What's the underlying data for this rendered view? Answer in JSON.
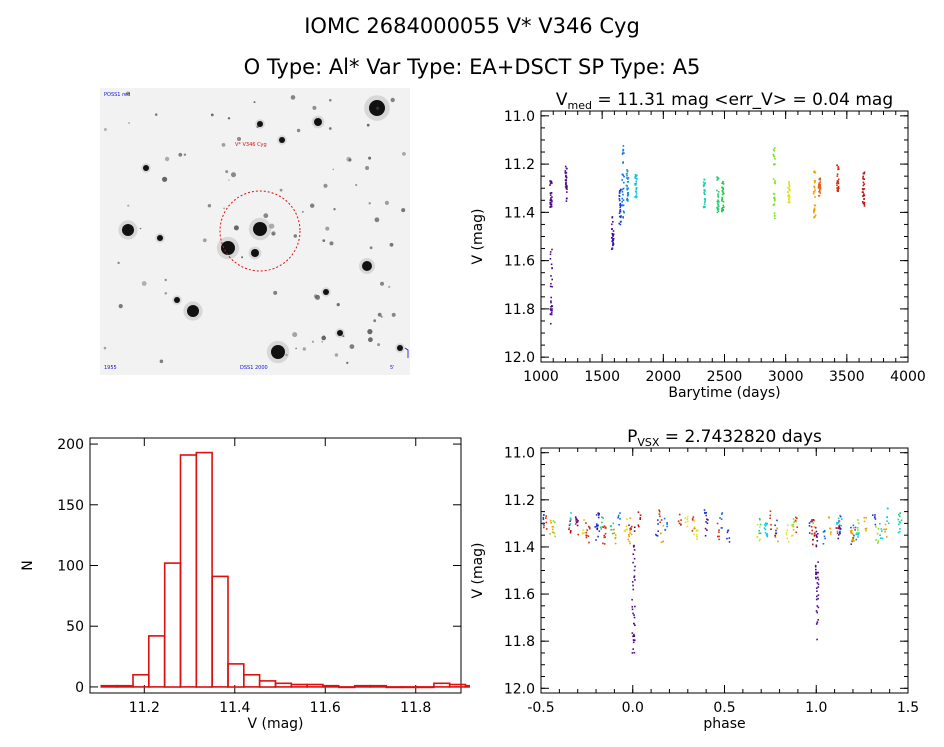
{
  "header": {
    "title_line1": "IOMC 2684000055    V* V346 Cyg",
    "title_line2": "O Type: Al*  Var Type: EA+DSCT  SP Type: A5"
  },
  "finder": {
    "label_top_left": "POSS1 red",
    "label_target": "V* V346 Cyg",
    "label_bottom_left": "1955",
    "label_bottom_center": "DSS1 2000",
    "label_bottom_right": "5'"
  },
  "colors": {
    "axis": "#000000",
    "histogram": "#dd1010",
    "finder_circle": "#dd1010"
  },
  "chart_data": [
    {
      "id": "light_curve",
      "type": "scatter",
      "title_prefix": "V",
      "title_subscript": "med",
      "title_rest": " = 11.31 mag <err_V> = 0.04 mag",
      "xlabel": "Barytime (days)",
      "ylabel": "V (mag)",
      "xlim": [
        1000,
        4000
      ],
      "ylim": [
        12.02,
        10.98
      ],
      "xticks": [
        "1000",
        "1500",
        "2000",
        "2500",
        "3000",
        "3500",
        "4000"
      ],
      "xtick_values": [
        1000,
        1500,
        2000,
        2500,
        3000,
        3500,
        4000
      ],
      "yticks": [
        "11.0",
        "11.2",
        "11.4",
        "11.6",
        "11.8",
        "12.0"
      ],
      "ytick_values": [
        11.0,
        11.2,
        11.4,
        11.6,
        11.8,
        12.0
      ],
      "clusters": [
        {
          "x": 1075,
          "ymin": 11.26,
          "ymax": 11.38,
          "color": "#4b0a8a"
        },
        {
          "x": 1078,
          "ymin": 11.55,
          "ymax": 11.86,
          "color": "#4b0a8a"
        },
        {
          "x": 1200,
          "ymin": 11.2,
          "ymax": 11.36,
          "color": "#4b0a8a"
        },
        {
          "x": 1580,
          "ymin": 11.4,
          "ymax": 11.55,
          "color": "#3a0fa0"
        },
        {
          "x": 1640,
          "ymin": 11.3,
          "ymax": 11.45,
          "color": "#1e3ad0"
        },
        {
          "x": 1665,
          "ymin": 11.1,
          "ymax": 11.42,
          "color": "#1070e0"
        },
        {
          "x": 1700,
          "ymin": 11.22,
          "ymax": 11.36,
          "color": "#1090e0"
        },
        {
          "x": 1770,
          "ymin": 11.24,
          "ymax": 11.34,
          "color": "#10c8e0"
        },
        {
          "x": 2330,
          "ymin": 11.26,
          "ymax": 11.38,
          "color": "#20d0b0"
        },
        {
          "x": 2440,
          "ymin": 11.25,
          "ymax": 11.4,
          "color": "#20d070"
        },
        {
          "x": 2480,
          "ymin": 11.26,
          "ymax": 11.4,
          "color": "#20c840"
        },
        {
          "x": 2900,
          "ymin": 11.13,
          "ymax": 11.45,
          "color": "#80e020"
        },
        {
          "x": 3020,
          "ymin": 11.27,
          "ymax": 11.36,
          "color": "#e0e020"
        },
        {
          "x": 3230,
          "ymin": 11.22,
          "ymax": 11.42,
          "color": "#f0a000"
        },
        {
          "x": 3270,
          "ymin": 11.25,
          "ymax": 11.33,
          "color": "#e06010"
        },
        {
          "x": 3420,
          "ymin": 11.2,
          "ymax": 11.32,
          "color": "#d03010"
        },
        {
          "x": 3630,
          "ymin": 11.23,
          "ymax": 11.37,
          "color": "#c01010"
        }
      ]
    },
    {
      "id": "histogram",
      "type": "bar",
      "xlabel": "V (mag)",
      "ylabel": "N",
      "xlim": [
        11.08,
        11.9
      ],
      "ylim": [
        -5,
        205
      ],
      "xticks": [
        "11.2",
        "11.4",
        "11.6",
        "11.8"
      ],
      "xtick_values": [
        11.2,
        11.4,
        11.6,
        11.8
      ],
      "yticks": [
        "0",
        "50",
        "100",
        "150",
        "200"
      ],
      "ytick_values": [
        0,
        50,
        100,
        150,
        200
      ],
      "bin_width": 0.035,
      "bin_edges_start": 11.105,
      "values": [
        1,
        1,
        10,
        42,
        102,
        191,
        193,
        91,
        19,
        10,
        5,
        3,
        2,
        2,
        1,
        0,
        1,
        1,
        0,
        0,
        0,
        3,
        2,
        1
      ]
    },
    {
      "id": "phase_curve",
      "type": "scatter",
      "title_prefix": "P",
      "title_subscript": "VSX",
      "title_rest": " = 2.7432820 days",
      "xlabel": "phase",
      "ylabel": "V (mag)",
      "xlim": [
        -0.5,
        1.5
      ],
      "ylim": [
        12.02,
        10.98
      ],
      "xticks": [
        "-0.5",
        "0.0",
        "0.5",
        "1.0",
        "1.5"
      ],
      "xtick_values": [
        -0.5,
        0.0,
        0.5,
        1.0,
        1.5
      ],
      "yticks": [
        "11.0",
        "11.2",
        "11.4",
        "11.6",
        "11.8",
        "12.0"
      ],
      "ytick_values": [
        11.0,
        11.2,
        11.4,
        11.6,
        11.8,
        12.0
      ],
      "eclipse_phase": 0.0,
      "eclipse_depth_mag": 11.85,
      "baseline_mag": 11.31,
      "palette": [
        "#4b0a8a",
        "#1e3ad0",
        "#1070e0",
        "#10c8e0",
        "#20d070",
        "#80e020",
        "#e0e020",
        "#f0a000",
        "#d03010",
        "#c01010"
      ]
    }
  ]
}
